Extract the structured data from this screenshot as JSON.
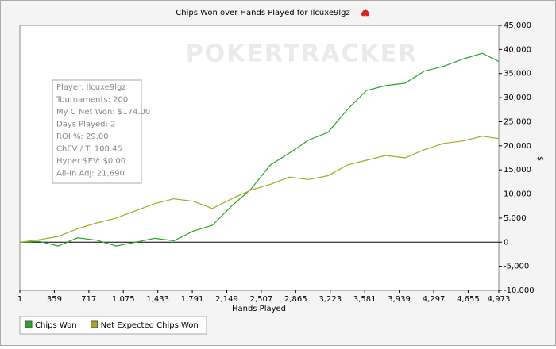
{
  "chart_data": {
    "type": "line",
    "title": "Chips Won over Hands Played for Ilcuxe9lgz",
    "watermark": "POKERTRACKER",
    "x_label": "Hands Played",
    "y_label": "$",
    "annotations": [
      "Player: Ilcuxe9lgz",
      "Tournaments: 200",
      "My C Net Won: $174.00",
      "Days Played: 2",
      "ROI %: 29.00",
      "ChEV / T: 108.45",
      "Hyper $EV: $0.00",
      "All-In Adj: 21,690"
    ],
    "x": [
      1,
      200,
      400,
      600,
      800,
      1000,
      1200,
      1400,
      1600,
      1800,
      2000,
      2200,
      2400,
      2600,
      2800,
      3000,
      3200,
      3400,
      3600,
      3800,
      4000,
      4200,
      4400,
      4600,
      4800,
      4973
    ],
    "series": [
      {
        "name": "Chips Won",
        "color": "#2aa52a",
        "values": [
          0,
          200,
          -800,
          900,
          400,
          -800,
          0,
          800,
          300,
          2300,
          3500,
          7500,
          11000,
          16000,
          18500,
          21200,
          22800,
          27500,
          31500,
          32500,
          33000,
          35500,
          36500,
          38000,
          39200,
          37500
        ]
      },
      {
        "name": "Net Expected Chips Won",
        "color": "#a8a820",
        "values": [
          0,
          500,
          1200,
          2800,
          4000,
          5000,
          6500,
          8000,
          9000,
          8500,
          7000,
          9000,
          10800,
          12000,
          13500,
          13000,
          13800,
          16000,
          17000,
          18000,
          17500,
          19200,
          20500,
          21000,
          22000,
          21500
        ]
      }
    ],
    "xlim": [
      1,
      4973
    ],
    "xticks": [
      1,
      359,
      717,
      {
        "value": 1075,
        "label": "1,075"
      },
      {
        "value": 1433,
        "label": "1,433"
      },
      {
        "value": 1791,
        "label": "1,791"
      },
      {
        "value": 2149,
        "label": "2,149"
      },
      {
        "value": 2507,
        "label": "2,507"
      },
      {
        "value": 2865,
        "label": "2,865"
      },
      {
        "value": 3223,
        "label": "3,223"
      },
      {
        "value": 3581,
        "label": "3,581"
      },
      {
        "value": 3939,
        "label": "3,939"
      },
      {
        "value": 4297,
        "label": "4,297"
      },
      {
        "value": 4655,
        "label": "4,655"
      },
      {
        "value": 4973,
        "label": "4,973"
      }
    ],
    "ylim": [
      -10000,
      45000
    ],
    "yticks": [
      {
        "value": -10000,
        "label": "-10,000"
      },
      {
        "value": -5000,
        "label": "-5,000"
      },
      0,
      {
        "value": 5000,
        "label": "5,000"
      },
      {
        "value": 10000,
        "label": "10,000"
      },
      {
        "value": 15000,
        "label": "15,000"
      },
      {
        "value": 20000,
        "label": "20,000"
      },
      {
        "value": 25000,
        "label": "25,000"
      },
      {
        "value": 30000,
        "label": "30,000"
      },
      {
        "value": 35000,
        "label": "35,000"
      },
      {
        "value": 40000,
        "label": "40,000"
      },
      {
        "value": 45000,
        "label": "45,000"
      }
    ],
    "legend": "bottom-left"
  }
}
